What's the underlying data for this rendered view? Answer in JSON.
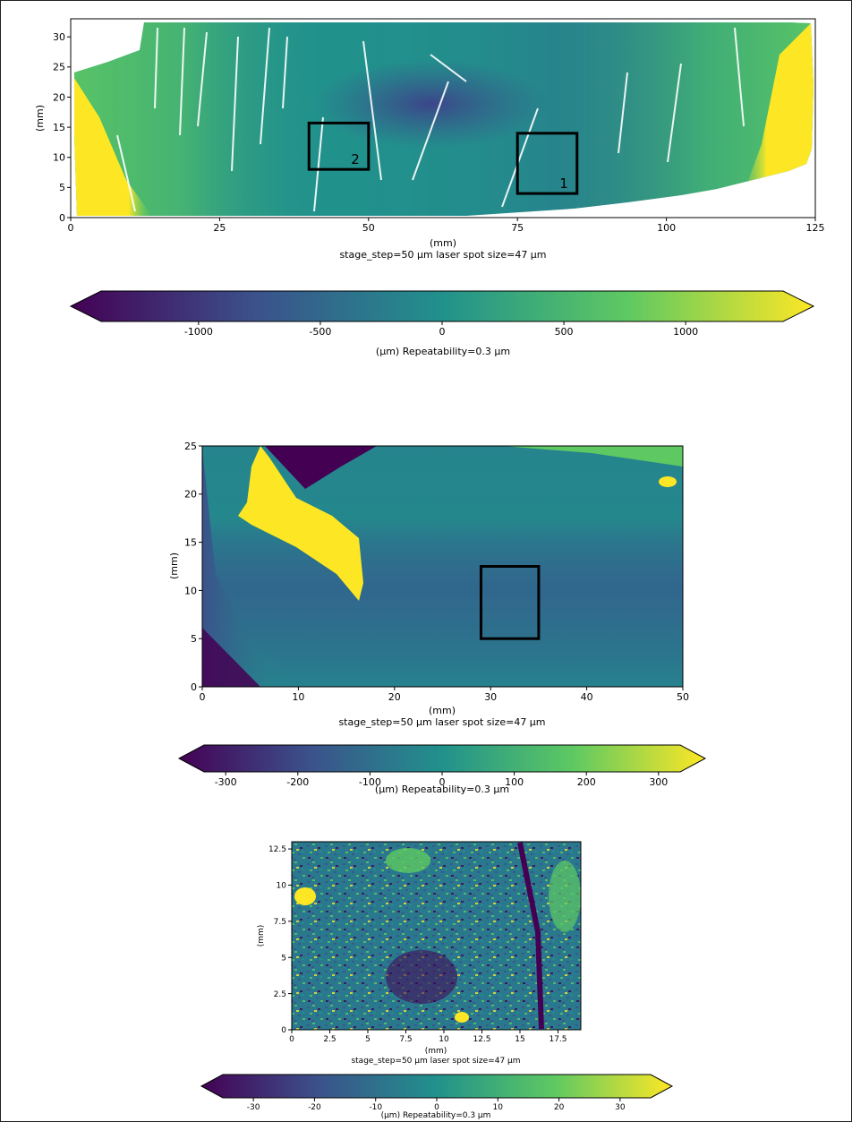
{
  "figure": {
    "colormap": [
      "#440154",
      "#3b528b",
      "#21918c",
      "#5ec962",
      "#fde725"
    ]
  },
  "chart_data": [
    {
      "type": "heatmap",
      "xlabel": "(mm)",
      "ylabel": "(mm)",
      "caption": "stage_step=50 μm laser spot size=47 μm",
      "xlim": [
        0,
        125
      ],
      "ylim": [
        0,
        33
      ],
      "xticks": [
        0,
        25,
        50,
        75,
        100,
        125
      ],
      "yticks": [
        0,
        5,
        10,
        15,
        20,
        25,
        30
      ],
      "boxes": [
        {
          "label": "2",
          "x": [
            40,
            50
          ],
          "y": [
            8,
            15.7
          ]
        },
        {
          "label": "1",
          "x": [
            75,
            85
          ],
          "y": [
            4,
            14
          ]
        }
      ],
      "colorbar": {
        "label": "(μm) Repeatability=0.3 μm",
        "range": [
          -1400,
          1400
        ],
        "ticks": [
          -1000,
          -500,
          0,
          500,
          1000
        ],
        "extend": "both"
      }
    },
    {
      "type": "heatmap",
      "xlabel": "(mm)",
      "ylabel": "(mm)",
      "caption": "stage_step=50 μm laser spot size=47 μm",
      "xlim": [
        0,
        50
      ],
      "ylim": [
        0,
        25
      ],
      "xticks": [
        0,
        10,
        20,
        30,
        40,
        50
      ],
      "yticks": [
        0,
        5,
        10,
        15,
        20,
        25
      ],
      "boxes": [
        {
          "label": "",
          "x": [
            29,
            35
          ],
          "y": [
            5,
            12.5
          ]
        }
      ],
      "colorbar": {
        "label": "(μm) Repeatability=0.3 μm",
        "range": [
          -330,
          330
        ],
        "ticks": [
          -300,
          -200,
          -100,
          0,
          100,
          200,
          300
        ],
        "extend": "both"
      }
    },
    {
      "type": "heatmap",
      "xlabel": "(mm)",
      "ylabel": "(mm)",
      "caption": "stage_step=50 μm laser spot size=47 μm",
      "xlim": [
        0,
        19
      ],
      "ylim": [
        0,
        13
      ],
      "xticks": [
        "0",
        "2.5",
        "5",
        "7.5",
        "10",
        "12.5",
        "15",
        "17.5"
      ],
      "yticks": [
        "0",
        "2.5",
        "5",
        "7.5",
        "10",
        "12.5"
      ],
      "boxes": [],
      "colorbar": {
        "label": "(μm) Repeatability=0.3 μm",
        "range": [
          -35,
          35
        ],
        "ticks": [
          -30,
          -20,
          -10,
          0,
          10,
          20,
          30
        ],
        "extend": "both"
      }
    }
  ]
}
